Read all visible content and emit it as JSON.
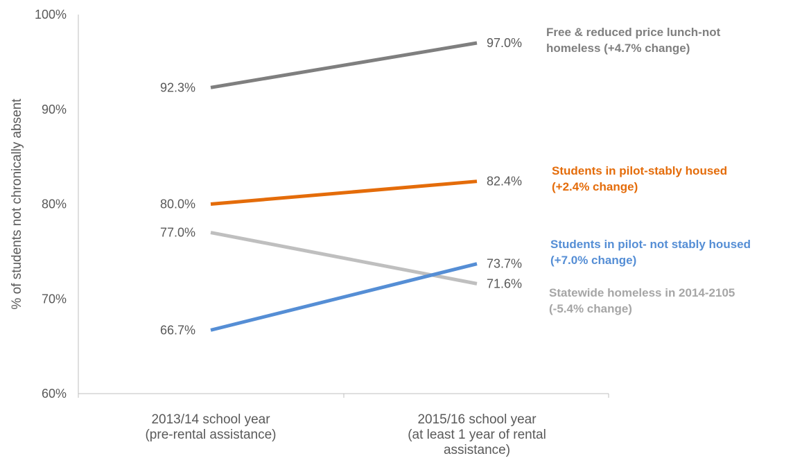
{
  "chart_data": {
    "type": "line",
    "ylabel": "% of students not chronically absent",
    "xlabel": "",
    "ylim": [
      60,
      100
    ],
    "yticks": [
      60,
      70,
      80,
      90,
      100
    ],
    "ytick_labels": [
      "60%",
      "70%",
      "80%",
      "90%",
      "100%"
    ],
    "grid": false,
    "categories": [
      [
        "2013/14 school year",
        "(pre-rental assistance)"
      ],
      [
        "2015/16 school year",
        "(at least 1 year of rental",
        "assistance)"
      ]
    ],
    "series": [
      {
        "name_lines": [
          "Free & reduced price lunch-not",
          "homeless (+4.7% change)"
        ],
        "values": [
          92.3,
          97.0
        ],
        "value_labels": [
          "92.3%",
          "97.0%"
        ],
        "color": "#7f7f7f",
        "label_color": "#7f7f7f"
      },
      {
        "name_lines": [
          "Students in pilot-stably housed",
          "(+2.4% change)"
        ],
        "values": [
          80.0,
          82.4
        ],
        "value_labels": [
          "80.0%",
          "82.4%"
        ],
        "color": "#e46c0a",
        "label_color": "#e46c0a"
      },
      {
        "name_lines": [
          "Statewide homeless in 2014-2105",
          "(-5.4% change)"
        ],
        "values": [
          77.0,
          71.6
        ],
        "value_labels": [
          "77.0%",
          "71.6%"
        ],
        "color": "#bfbfbf",
        "label_color": "#a6a6a6"
      },
      {
        "name_lines": [
          "Students in pilot- not stably housed",
          "(+7.0% change)"
        ],
        "values": [
          66.7,
          73.7
        ],
        "value_labels": [
          "66.7%",
          "73.7%"
        ],
        "color": "#558ed5",
        "label_color": "#558ed5"
      }
    ]
  }
}
